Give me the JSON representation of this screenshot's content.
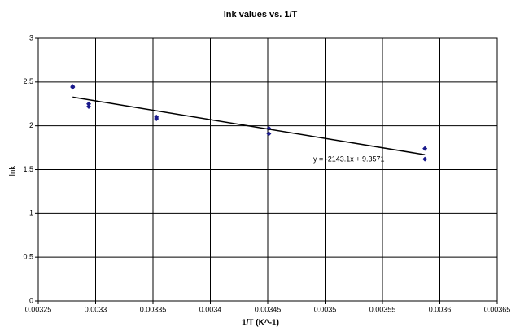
{
  "chart_data": {
    "type": "scatter",
    "title": "lnk values vs. 1/T",
    "x_label": "1/T (K^-1)",
    "y_label": "lnk",
    "series": [
      {
        "name": "lnk",
        "color": "#1a1a8c",
        "x": [
          0.00328,
          0.00328,
          0.003294,
          0.003294,
          0.003353,
          0.003353,
          0.003451,
          0.003451,
          0.003587,
          0.003587
        ],
        "values": [
          2.45,
          2.44,
          2.25,
          2.22,
          2.1,
          2.08,
          1.97,
          1.91,
          1.74,
          1.62
        ]
      }
    ],
    "trendline": {
      "slope": -2143.1,
      "intercept": 9.3571,
      "label": "y = -2143.1x + 9.3571",
      "color": "#000000"
    },
    "xlim": [
      0.00325,
      0.00365
    ],
    "xticks": [
      0.00325,
      0.0033,
      0.00335,
      0.0034,
      0.00345,
      0.0035,
      0.00355,
      0.0036,
      0.00365
    ],
    "ylim": [
      0,
      3
    ],
    "yticks": [
      0,
      0.5,
      1,
      1.5,
      2,
      2.5,
      3
    ],
    "grid": true
  }
}
